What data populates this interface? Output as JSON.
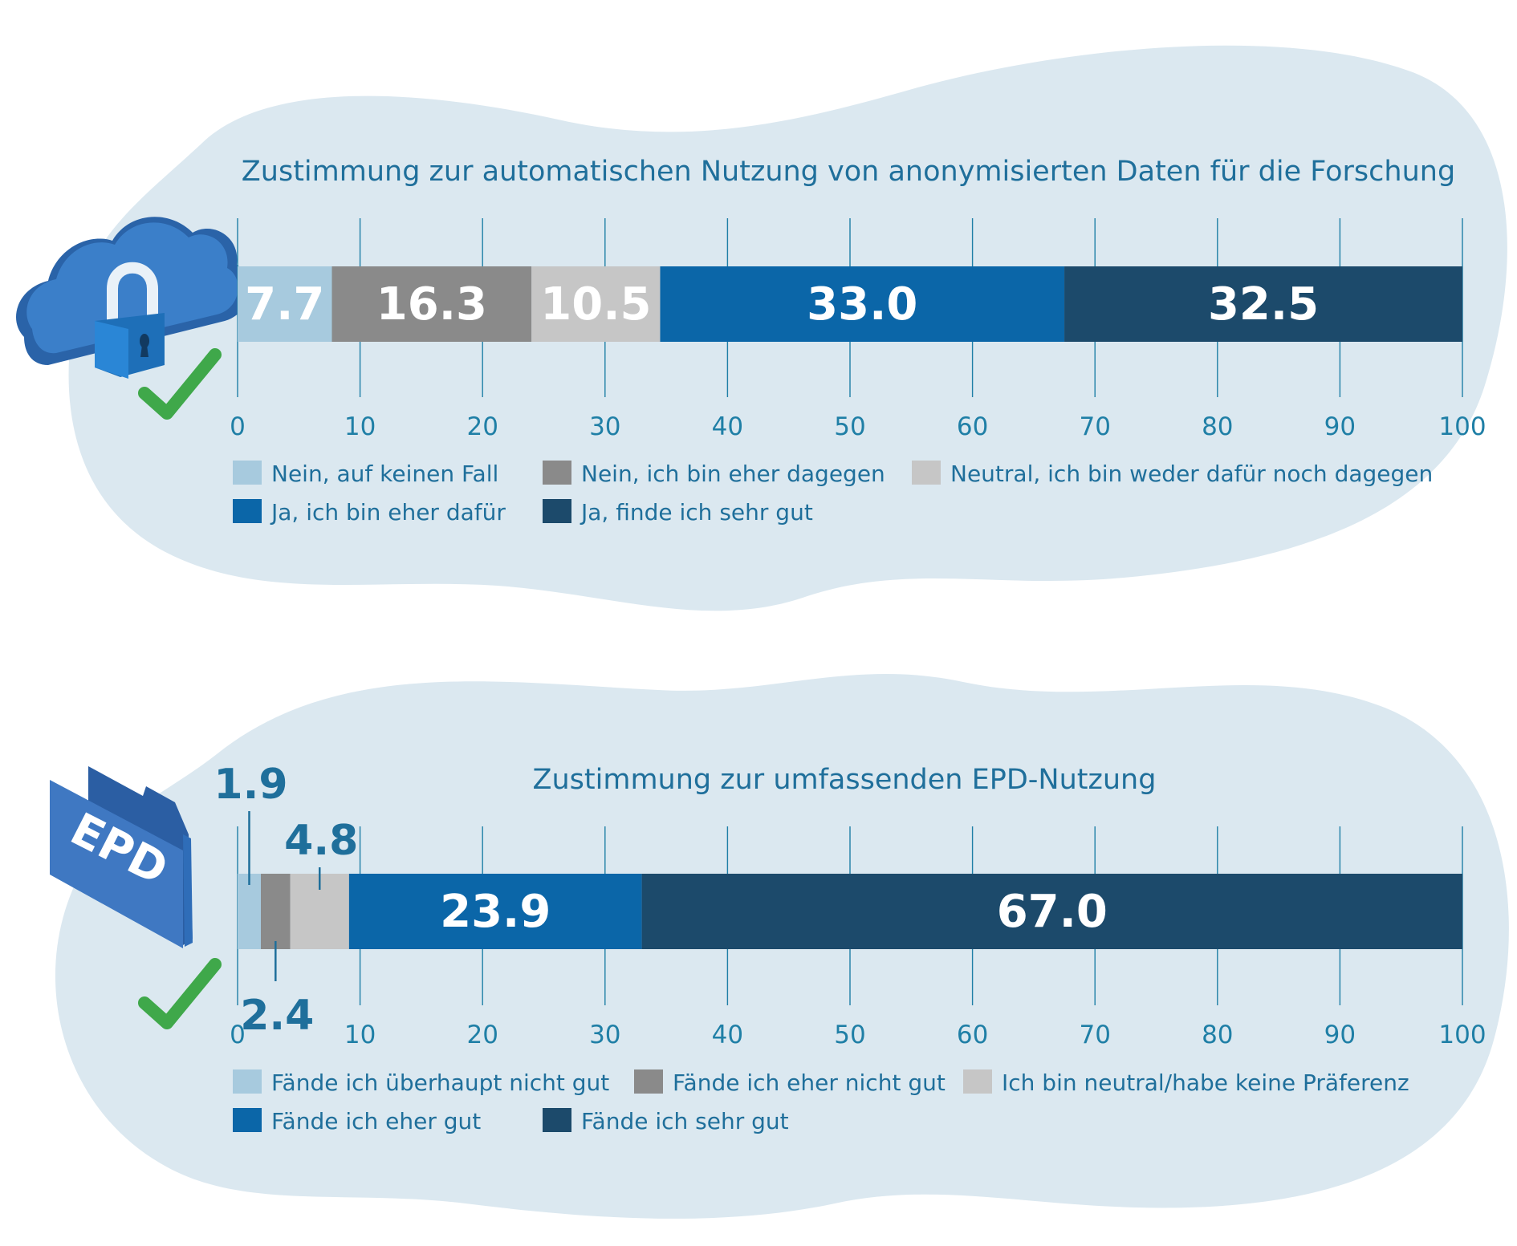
{
  "colors": {
    "blob": "#dbe8f0",
    "axis": "#1f7fa6",
    "text": "#1f6f9b",
    "check": "#3fa84a",
    "lock_cloud": "#2f73bd",
    "epd_folder": "#3f78c2"
  },
  "icons": [
    "cloud-lock-icon",
    "check-icon",
    "epd-folder-icon",
    "check-icon"
  ],
  "chart_data": [
    {
      "type": "stacked-bar-horizontal",
      "title": "Zustimmung zur automatischen Nutzung von anonymisierten Daten für die Forschung",
      "xlim": [
        0,
        100
      ],
      "ticks": [
        "0",
        "10",
        "20",
        "30",
        "40",
        "50",
        "60",
        "70",
        "80",
        "90",
        "100"
      ],
      "grid": true,
      "series": [
        {
          "name": "Nein, auf keinen Fall",
          "value": 7.7,
          "label": "7.7",
          "color": "#a7cade"
        },
        {
          "name": "Nein, ich bin eher dagegen",
          "value": 16.3,
          "label": "16.3",
          "color": "#8a8a8a"
        },
        {
          "name": "Neutral, ich bin weder dafür noch dagegen",
          "value": 10.5,
          "label": "10.5",
          "color": "#c6c6c6"
        },
        {
          "name": "Ja, ich bin eher dafür",
          "value": 33.0,
          "label": "33.0",
          "color": "#0b66a8"
        },
        {
          "name": "Ja, finde ich sehr gut",
          "value": 32.5,
          "label": "32.5",
          "color": "#1c4a6b"
        }
      ]
    },
    {
      "type": "stacked-bar-horizontal",
      "title": "Zustimmung zur umfassenden EPD-Nutzung",
      "icon_text": "EPD",
      "xlim": [
        0,
        100
      ],
      "ticks": [
        "0",
        "10",
        "20",
        "30",
        "40",
        "50",
        "60",
        "70",
        "80",
        "90",
        "100"
      ],
      "grid": true,
      "series": [
        {
          "name": "Fände ich überhaupt nicht gut",
          "value": 1.9,
          "label": "1.9",
          "color": "#a7cade"
        },
        {
          "name": "Fände ich eher nicht gut",
          "value": 2.4,
          "label": "2.4",
          "color": "#8a8a8a"
        },
        {
          "name": "Ich bin neutral/habe keine Präferenz",
          "value": 4.8,
          "label": "4.8",
          "color": "#c6c6c6"
        },
        {
          "name": "Fände ich eher gut",
          "value": 23.9,
          "label": "23.9",
          "color": "#0b66a8"
        },
        {
          "name": "Fände ich sehr gut",
          "value": 67.0,
          "label": "67.0",
          "color": "#1c4a6b"
        }
      ]
    }
  ]
}
